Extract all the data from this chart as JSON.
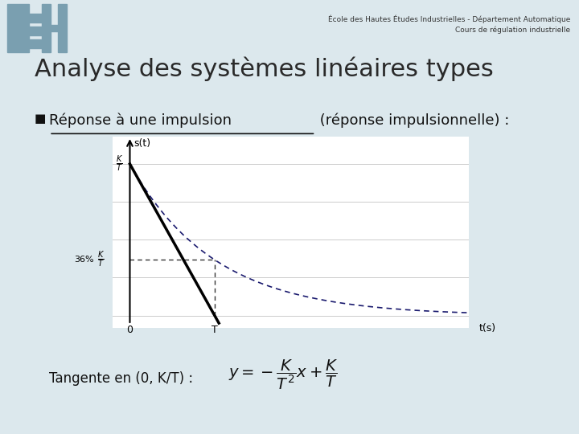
{
  "bg_color": "#dce8ed",
  "slide_title": "Analyse des systèmes linéaires types",
  "header_line1": "École des Hautes Études Industrielles - Département Automatique",
  "header_line2": "Cours de régulation industrielle",
  "bullet_underlined": "Réponse à une impulsion",
  "bullet_normal": " (réponse impulsionnelle) :",
  "footer_tangent_text": "Tangente en (0, K/T) :",
  "footer_formula": "$y = -\\dfrac{K}{T^2}x + \\dfrac{K}{T}$",
  "plot_bg": "#ffffff",
  "curve_color": "#1a1a6e",
  "tangent_color": "#000000",
  "grid_color": "#cccccc",
  "K": 1.0,
  "T": 1.0,
  "t_max": 4.0,
  "logo_color": "#7a9fb0"
}
